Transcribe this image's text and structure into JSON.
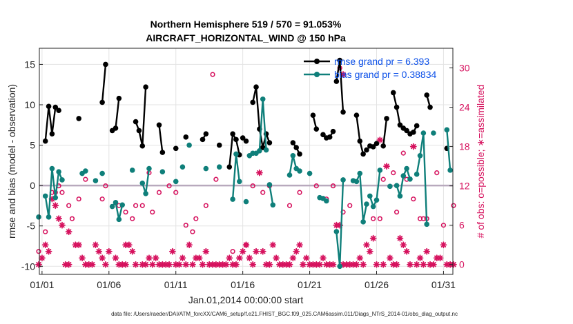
{
  "chart_data": {
    "type": "line",
    "title": [
      "Northern Hemisphere 519 / 570 = 91.053%",
      "AIRCRAFT_HORIZONTAL_WIND @ 150 hPa"
    ],
    "xlabel": "Jan.01,2014 00:00:00 start",
    "ylabel": "rmse and bias (model - observation)",
    "ylabel_right": "# of obs: o=possible; ∗=assimilated",
    "ylim": [
      -11,
      17
    ],
    "xlim": [
      0.8,
      31.7
    ],
    "y2lim": [
      -1.5,
      33
    ],
    "xticks": [
      1,
      6,
      11,
      16,
      21,
      26,
      31
    ],
    "xtick_labels": [
      "01/01",
      "01/06",
      "01/11",
      "01/16",
      "01/21",
      "01/26",
      "01/31"
    ],
    "yticks": [
      -10,
      -5,
      0,
      5,
      10,
      15
    ],
    "ytick_labels": [
      "-10",
      "-5",
      "0",
      "5",
      "10",
      "15"
    ],
    "y2ticks": [
      0,
      6,
      12,
      18,
      24,
      30
    ],
    "y2tick_labels": [
      "0",
      "6",
      "12",
      "18",
      "24",
      "30"
    ],
    "grid": true,
    "legend_position": "top-right",
    "series": [
      {
        "name": "rmse grand pr = 6.393",
        "color": "#000000",
        "segments": [
          [
            [
              1.25,
              5.5
            ],
            [
              1.5,
              9.8
            ],
            [
              1.75,
              6.4
            ],
            [
              2.0,
              9.7
            ],
            [
              2.25,
              9.3
            ]
          ],
          [
            [
              3.75,
              8.3
            ]
          ],
          [
            [
              5.5,
              10.3
            ],
            [
              5.75,
              15.0
            ]
          ],
          [
            [
              6.25,
              6.8
            ],
            [
              6.5,
              7.1
            ],
            [
              6.75,
              10.8
            ]
          ],
          [
            [
              8.0,
              7.9
            ],
            [
              8.25,
              6.8
            ],
            [
              8.5,
              4.9
            ],
            [
              8.75,
              12.2
            ]
          ],
          [
            [
              9.75,
              7.5
            ],
            [
              10.0,
              4.1
            ]
          ],
          [
            [
              11.0,
              4.6
            ]
          ],
          [
            [
              11.75,
              6.0
            ]
          ],
          [
            [
              13.0,
              5.7
            ],
            [
              13.25,
              6.4
            ]
          ],
          [
            [
              14.25,
              5.0
            ]
          ],
          [
            [
              15.0,
              2.3
            ],
            [
              15.25,
              6.4
            ],
            [
              15.5,
              5.7
            ],
            [
              15.75,
              3.8
            ]
          ],
          [
            [
              16.0,
              5.9
            ],
            [
              16.25,
              5.5
            ]
          ],
          [
            [
              16.75,
              10.3
            ],
            [
              17.0,
              12.2
            ],
            [
              17.25,
              7.0
            ],
            [
              17.5,
              4.7
            ],
            [
              17.75,
              6.4
            ],
            [
              18.0,
              5.3
            ]
          ],
          [
            [
              19.75,
              5.3
            ],
            [
              20.0,
              4.7
            ],
            [
              20.25,
              3.9
            ]
          ],
          [
            [
              21.25,
              8.7
            ],
            [
              21.5,
              7.0
            ]
          ],
          [
            [
              22.0,
              6.3
            ],
            [
              22.25,
              5.9
            ],
            [
              22.5,
              6.0
            ],
            [
              22.75,
              6.7
            ]
          ],
          [
            [
              23.0,
              12.9
            ],
            [
              23.25,
              15.5
            ],
            [
              23.5,
              9.1
            ]
          ],
          [
            [
              24.5,
              8.7
            ],
            [
              24.75,
              5.5
            ],
            [
              25.0,
              3.9
            ]
          ],
          [
            [
              25.25,
              4.4
            ],
            [
              25.5,
              4.9
            ],
            [
              25.75,
              4.8
            ],
            [
              26.0,
              5.2
            ]
          ],
          [
            [
              26.5,
              4.9
            ],
            [
              26.75,
              8.3
            ]
          ],
          [
            [
              27.25,
              11.5
            ],
            [
              27.5,
              9.7
            ],
            [
              27.75,
              7.5
            ],
            [
              28.0,
              7.1
            ],
            [
              28.25,
              6.8
            ],
            [
              28.5,
              6.4
            ],
            [
              28.75,
              6.6
            ],
            [
              29.0,
              7.4
            ]
          ],
          [
            [
              29.75,
              11.2
            ],
            [
              30.0,
              9.7
            ]
          ],
          [
            [
              31.25,
              4.6
            ]
          ]
        ]
      },
      {
        "name": "bias grand pr = 0.38834",
        "color": "#0f7f7a",
        "segments": [
          [
            [
              0.75,
              -3.9
            ]
          ],
          [
            [
              1.25,
              -1.3
            ],
            [
              1.5,
              -3.9
            ],
            [
              1.75,
              2.1
            ],
            [
              2.0,
              -1.5
            ],
            [
              2.25,
              1.7
            ],
            [
              2.5,
              0.7
            ]
          ],
          [
            [
              4.0,
              1.5
            ],
            [
              4.25,
              1.8
            ]
          ],
          [
            [
              5.0,
              0.6
            ]
          ],
          [
            [
              5.5,
              1.5
            ]
          ],
          [
            [
              6.25,
              -2.6
            ],
            [
              6.5,
              -2.1
            ],
            [
              6.75,
              -4.2
            ],
            [
              7.0,
              -2.4
            ]
          ],
          [
            [
              7.75,
              1.9
            ]
          ],
          [
            [
              8.5,
              0.3
            ],
            [
              8.75,
              -1.0
            ],
            [
              9.0,
              2.1
            ]
          ],
          [
            [
              10.0,
              1.7
            ]
          ],
          [
            [
              11.0,
              0.5
            ]
          ],
          [
            [
              11.5,
              2.3
            ]
          ],
          [
            [
              12.0,
              5.0
            ]
          ],
          [
            [
              13.25,
              2.1
            ]
          ],
          [
            [
              14.25,
              2.3
            ]
          ],
          [
            [
              15.25,
              -1.7
            ],
            [
              15.5,
              3.9
            ],
            [
              15.75,
              0.5
            ]
          ],
          [
            [
              16.25,
              -2.0
            ]
          ],
          [
            [
              16.5,
              3.7
            ],
            [
              16.75,
              4.0
            ],
            [
              17.0,
              4.0
            ],
            [
              17.25,
              4.3
            ],
            [
              17.5,
              10.7
            ],
            [
              17.75,
              4.4
            ]
          ],
          [
            [
              18.0,
              0.1
            ],
            [
              18.25,
              -2.4
            ]
          ],
          [
            [
              19.5,
              1.3
            ],
            [
              19.75,
              3.7
            ],
            [
              20.0,
              2.1
            ],
            [
              20.25,
              1.8
            ]
          ],
          [
            [
              21.0,
              1.5
            ]
          ],
          [
            [
              21.75,
              -1.5
            ],
            [
              22.0,
              -1.6
            ],
            [
              22.25,
              -1.9
            ]
          ],
          [
            [
              23.0,
              -5.7
            ],
            [
              23.25,
              -10.0
            ],
            [
              23.5,
              0.7
            ]
          ],
          [
            [
              24.25,
              0.6
            ],
            [
              24.5,
              0.5
            ],
            [
              24.75,
              1.5
            ],
            [
              25.0,
              -4.5
            ],
            [
              25.25,
              -2.3
            ]
          ],
          [
            [
              25.5,
              -1.3
            ],
            [
              25.75,
              -2.6
            ],
            [
              26.0,
              -1.8
            ],
            [
              26.25,
              1.9
            ]
          ],
          [
            [
              27.0,
              -0.1
            ]
          ],
          [
            [
              27.5,
              0.0
            ],
            [
              27.75,
              -1.3
            ],
            [
              28.0,
              1.2
            ],
            [
              28.25,
              2.1
            ],
            [
              28.5,
              0.8
            ]
          ],
          [
            [
              29.0,
              1.4
            ],
            [
              29.25,
              3.7
            ],
            [
              29.5,
              6.5
            ],
            [
              29.75,
              -4.8
            ]
          ],
          [
            [
              30.25,
              6.5
            ]
          ],
          [
            [
              31.25,
              6.9
            ],
            [
              31.5,
              1.9
            ]
          ]
        ]
      }
    ],
    "obs_possible": [
      [
        0.75,
        2
      ],
      [
        1.25,
        5
      ],
      [
        1.75,
        11
      ],
      [
        2.0,
        11
      ],
      [
        2.25,
        12
      ],
      [
        2.5,
        11
      ],
      [
        3.0,
        9
      ],
      [
        3.25,
        7
      ],
      [
        3.75,
        10
      ],
      [
        4.25,
        13
      ],
      [
        5.5,
        10
      ],
      [
        5.75,
        12
      ],
      [
        6.75,
        9
      ],
      [
        7.25,
        8
      ],
      [
        7.75,
        7
      ],
      [
        8.0,
        9
      ],
      [
        8.5,
        9
      ],
      [
        9.25,
        8
      ],
      [
        9.75,
        11
      ],
      [
        10.5,
        12
      ],
      [
        11.0,
        11
      ],
      [
        11.75,
        6
      ],
      [
        12.25,
        5
      ],
      [
        12.5,
        7
      ],
      [
        13.25,
        9
      ],
      [
        14.0,
        13
      ],
      [
        15.25,
        2
      ],
      [
        16.25,
        3
      ],
      [
        16.75,
        12
      ],
      [
        17.5,
        11
      ],
      [
        18.0,
        12
      ],
      [
        19.5,
        9
      ],
      [
        20.25,
        11
      ],
      [
        21.5,
        12
      ],
      [
        22.25,
        10
      ],
      [
        22.75,
        12
      ],
      [
        23.5,
        8
      ],
      [
        24.0,
        9
      ],
      [
        25.75,
        7
      ],
      [
        26.25,
        7
      ],
      [
        27.5,
        8
      ],
      [
        28.0,
        17
      ],
      [
        28.25,
        13
      ],
      [
        28.75,
        10
      ],
      [
        29.25,
        7
      ],
      [
        29.5,
        7
      ],
      [
        30.5,
        14
      ],
      [
        31.0,
        6
      ],
      [
        31.75,
        9
      ],
      [
        9.0,
        14
      ],
      [
        13.75,
        29
      ],
      [
        23.25,
        30
      ],
      [
        26.5,
        13
      ],
      [
        27.25,
        14
      ],
      [
        29.75,
        7
      ]
    ],
    "obs_assimilated": [
      [
        0.75,
        0
      ],
      [
        1.0,
        1
      ],
      [
        1.25,
        3
      ],
      [
        1.5,
        2
      ],
      [
        1.75,
        10
      ],
      [
        2.0,
        9
      ],
      [
        2.25,
        7
      ],
      [
        2.5,
        6
      ],
      [
        2.75,
        0
      ],
      [
        3.0,
        0
      ],
      [
        3.5,
        3
      ],
      [
        3.75,
        3
      ],
      [
        4.0,
        1
      ],
      [
        4.25,
        0
      ],
      [
        4.5,
        0
      ],
      [
        4.75,
        0
      ],
      [
        5.0,
        3
      ],
      [
        5.25,
        2
      ],
      [
        5.5,
        1
      ],
      [
        5.75,
        0
      ],
      [
        6.0,
        2
      ],
      [
        6.5,
        1
      ],
      [
        6.75,
        0
      ],
      [
        7.0,
        0
      ],
      [
        7.25,
        0
      ],
      [
        7.5,
        3
      ],
      [
        7.75,
        2
      ],
      [
        8.0,
        0
      ],
      [
        8.5,
        0
      ],
      [
        8.75,
        0
      ],
      [
        9.0,
        1
      ],
      [
        9.25,
        0
      ],
      [
        9.5,
        1
      ],
      [
        9.75,
        0
      ],
      [
        10.0,
        0
      ],
      [
        10.25,
        0
      ],
      [
        10.5,
        0
      ],
      [
        10.75,
        2
      ],
      [
        11.0,
        0
      ],
      [
        11.25,
        0
      ],
      [
        11.5,
        1
      ],
      [
        11.75,
        0
      ],
      [
        12.0,
        3
      ],
      [
        12.25,
        0
      ],
      [
        12.5,
        1
      ],
      [
        12.75,
        1
      ],
      [
        13.0,
        0
      ],
      [
        13.25,
        2
      ],
      [
        13.5,
        0
      ],
      [
        13.75,
        0
      ],
      [
        14.0,
        0
      ],
      [
        14.25,
        0
      ],
      [
        14.5,
        0
      ],
      [
        14.75,
        0
      ],
      [
        15.0,
        1
      ],
      [
        15.25,
        0
      ],
      [
        15.5,
        0
      ],
      [
        15.75,
        1
      ],
      [
        16.0,
        2
      ],
      [
        16.25,
        3
      ],
      [
        16.5,
        1
      ],
      [
        16.75,
        0
      ],
      [
        17.0,
        2
      ],
      [
        17.25,
        14
      ],
      [
        17.5,
        2
      ],
      [
        17.75,
        0
      ],
      [
        18.0,
        0
      ],
      [
        18.25,
        3
      ],
      [
        18.5,
        1
      ],
      [
        18.75,
        0
      ],
      [
        19.0,
        0
      ],
      [
        19.25,
        0
      ],
      [
        19.5,
        0
      ],
      [
        19.75,
        1
      ],
      [
        20.0,
        2
      ],
      [
        20.25,
        3
      ],
      [
        20.5,
        0
      ],
      [
        20.75,
        1
      ],
      [
        21.0,
        0
      ],
      [
        21.25,
        0
      ],
      [
        21.5,
        0
      ],
      [
        21.75,
        0
      ],
      [
        22.0,
        1
      ],
      [
        22.25,
        0
      ],
      [
        22.5,
        0
      ],
      [
        22.75,
        0
      ],
      [
        23.0,
        6
      ],
      [
        23.25,
        6
      ],
      [
        23.5,
        0
      ],
      [
        23.75,
        0
      ],
      [
        24.0,
        0
      ],
      [
        24.25,
        0
      ],
      [
        24.5,
        0
      ],
      [
        24.75,
        1
      ],
      [
        25.0,
        0
      ],
      [
        25.25,
        3
      ],
      [
        25.5,
        2
      ],
      [
        25.75,
        4
      ],
      [
        26.0,
        0
      ],
      [
        26.25,
        19
      ],
      [
        26.5,
        0
      ],
      [
        26.75,
        15
      ],
      [
        27.0,
        1
      ],
      [
        27.25,
        0
      ],
      [
        27.5,
        0
      ],
      [
        27.75,
        4
      ],
      [
        28.0,
        3
      ],
      [
        28.25,
        2
      ],
      [
        28.5,
        0
      ],
      [
        28.75,
        18
      ],
      [
        29.0,
        0
      ],
      [
        29.25,
        1
      ],
      [
        29.5,
        0
      ],
      [
        29.75,
        2
      ],
      [
        30.0,
        0
      ],
      [
        30.25,
        0
      ],
      [
        30.5,
        1
      ],
      [
        30.75,
        1
      ],
      [
        31.0,
        3
      ],
      [
        31.25,
        0
      ],
      [
        31.5,
        0
      ],
      [
        31.75,
        0
      ],
      [
        23.5,
        29
      ],
      [
        7.25,
        3
      ],
      [
        3.0,
        5
      ]
    ],
    "footer": "data file: /Users/raeder/DAI/ATM_forcXX/CAM6_setup/f.e21.FHIST_BGC.f09_025.CAM6assim.011/Diags_NTrS_2014-01/obs_diag_output.nc",
    "colors": {
      "rmse": "#000000",
      "bias": "#0f7f7a",
      "obs": "#d6125e",
      "legend_text": "#0b4fe8",
      "zero_line": "#b8a9bd",
      "grid": "#e3e3e3"
    }
  }
}
